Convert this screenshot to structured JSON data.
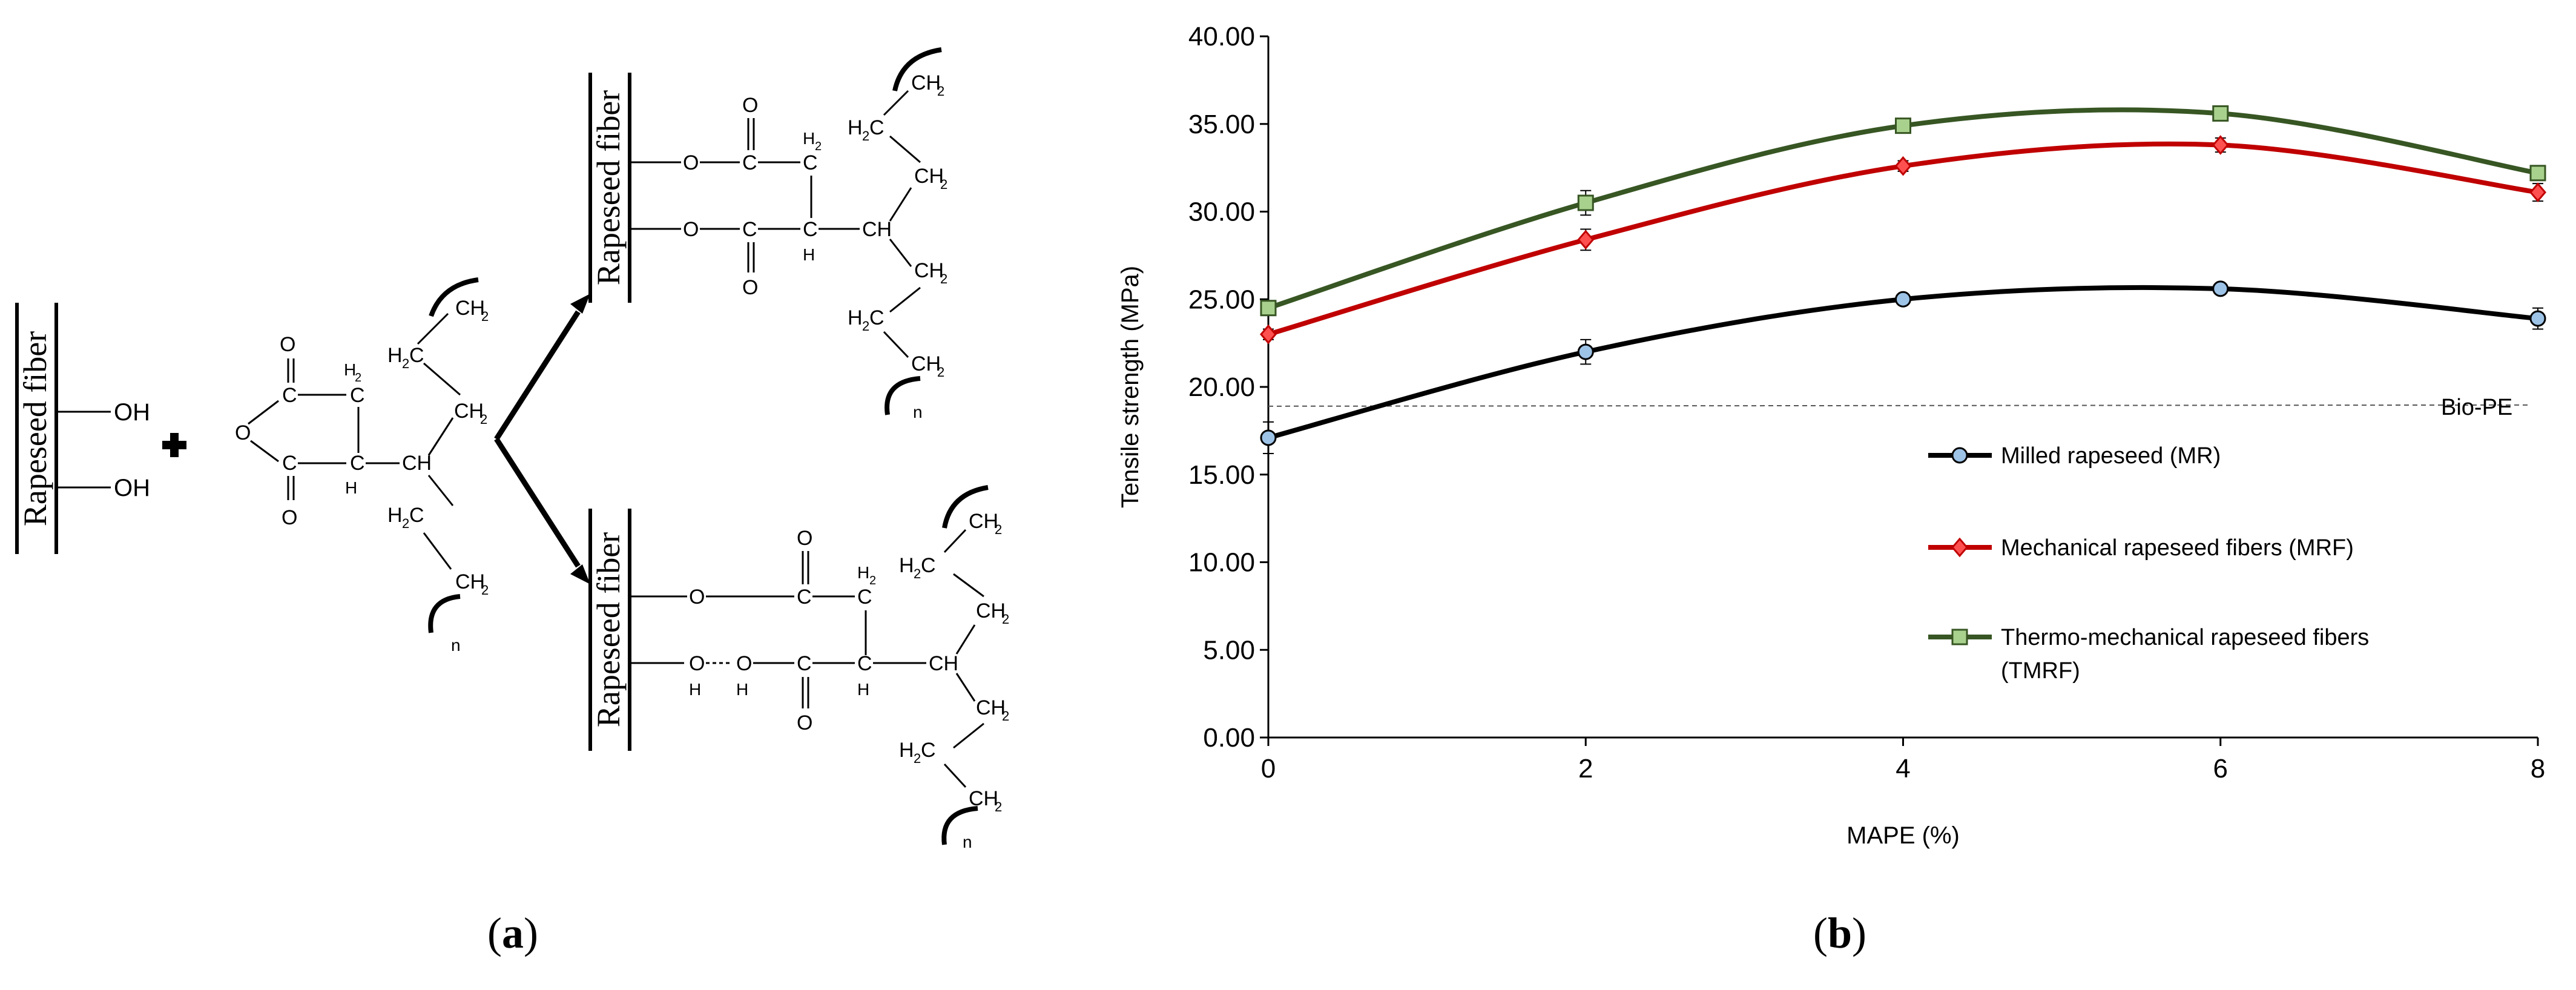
{
  "panel_a": {
    "fiber_label": "Rapeseed fiber",
    "caption_letter": "a",
    "atoms": {
      "oh": "OH",
      "o": "O",
      "c": "C",
      "h": "H",
      "h2": "H",
      "sub2": "2",
      "ch": "CH",
      "ch2": "CH",
      "n": "n"
    }
  },
  "panel_b": {
    "caption_letter": "b"
  },
  "chart_data": {
    "type": "line",
    "title": "",
    "xlabel": "MAPE (%)",
    "ylabel": "Tensile strength (MPa)",
    "x": [
      0,
      2,
      4,
      6,
      8
    ],
    "xticks": [
      "0",
      "2",
      "4",
      "6",
      "8"
    ],
    "yticks": [
      "0.00",
      "5.00",
      "10.00",
      "15.00",
      "20.00",
      "25.00",
      "30.00",
      "35.00",
      "40.00"
    ],
    "xlim": [
      0,
      8
    ],
    "ylim": [
      0,
      40
    ],
    "grid": false,
    "legend_position": "center-right",
    "series": [
      {
        "name": "Milled rapeseed (MR)",
        "values": [
          17.1,
          22.0,
          25.0,
          25.6,
          23.9
        ],
        "errors": [
          0.9,
          0.7,
          0.3,
          0.3,
          0.6
        ],
        "color": "#000000",
        "marker": "circle",
        "marker_fill": "#9dc3e6"
      },
      {
        "name": "Mechanical rapeseed fibers (MRF)",
        "values": [
          23.0,
          28.4,
          32.6,
          33.8,
          31.1
        ],
        "errors": [
          0.3,
          0.6,
          0.3,
          0.4,
          0.5
        ],
        "color": "#c00000",
        "marker": "diamond",
        "marker_fill": "#ff5050"
      },
      {
        "name": "Thermo-mechanical rapeseed fibers (TMRF)",
        "values": [
          24.5,
          30.5,
          34.9,
          35.6,
          32.2
        ],
        "errors": [
          0.3,
          0.7,
          0.2,
          0.2,
          0.4
        ],
        "color": "#375623",
        "marker": "square",
        "marker_fill": "#a9d18e"
      }
    ],
    "reference_line": {
      "label": "Bio-PE",
      "value": 18.9
    }
  }
}
